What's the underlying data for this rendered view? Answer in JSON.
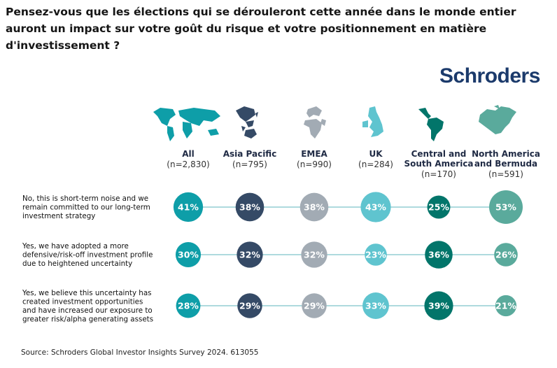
{
  "title": "Pensez-vous que les élections qui se dérouleront cette année dans le monde entier auront un impact sur votre goût du risque et votre positionnement en matière d'investissement ?",
  "logo_text": "Schroders",
  "source": "Source: Schroders Global Investor Insights Survey 2024. 613055",
  "colors": {
    "logo": "#1b3a6b",
    "line": "#7ec4c9",
    "All": "#0e9ea8",
    "Asia Pacific": "#354a66",
    "EMEA": "#a2abb4",
    "UK": "#5fc4cf",
    "Central and South America": "#02756a",
    "North America and Bermuda": "#5aaa9c"
  },
  "icons": [
    "world-map-icon",
    "asia-pacific-map-icon",
    "emea-map-icon",
    "uk-map-icon",
    "latin-america-map-icon",
    "north-america-map-icon"
  ],
  "chart_data": {
    "type": "bubble",
    "title": "Pensez-vous que les élections qui se dérouleront cette année dans le monde entier auront un impact sur votre goût du risque et votre positionnement en matière d'investissement ?",
    "unit": "%",
    "categories": [
      {
        "key": "All",
        "label_lines": [
          "All"
        ],
        "n": "(n=2,830)"
      },
      {
        "key": "Asia Pacific",
        "label_lines": [
          "Asia Pacific"
        ],
        "n": "(n=795)"
      },
      {
        "key": "EMEA",
        "label_lines": [
          "EMEA"
        ],
        "n": "(n=990)"
      },
      {
        "key": "UK",
        "label_lines": [
          "UK"
        ],
        "n": "(n=284)"
      },
      {
        "key": "Central and South America",
        "label_lines": [
          "Central and",
          "South America"
        ],
        "n": "(n=170)"
      },
      {
        "key": "North America and Bermuda",
        "label_lines": [
          "North America",
          "and Bermuda"
        ],
        "n": "(n=591)"
      }
    ],
    "series": [
      {
        "name": "No, this is short-term noise and we remain committed to our long-term investment strategy",
        "label_lines": [
          "No, this is short-term noise and we",
          "remain committed to our long-term",
          "investment strategy"
        ],
        "values": [
          41,
          38,
          38,
          43,
          25,
          53
        ]
      },
      {
        "name": "Yes, we have adopted a more defensive/risk-off investment profile due to heightened uncertainty",
        "label_lines": [
          "Yes, we have adopted a more",
          "defensive/risk-off investment profile",
          "due to heightened uncertainty"
        ],
        "values": [
          30,
          32,
          32,
          23,
          36,
          26
        ]
      },
      {
        "name": "Yes, we believe this uncertainty has created investment opportunities and have increased our exposure to greater risk/alpha generating assets",
        "label_lines": [
          "Yes, we believe this uncertainty has",
          "created investment opportunities",
          "and have increased our exposure to",
          "greater risk/alpha generating assets"
        ],
        "values": [
          28,
          29,
          29,
          33,
          39,
          21
        ]
      }
    ]
  }
}
